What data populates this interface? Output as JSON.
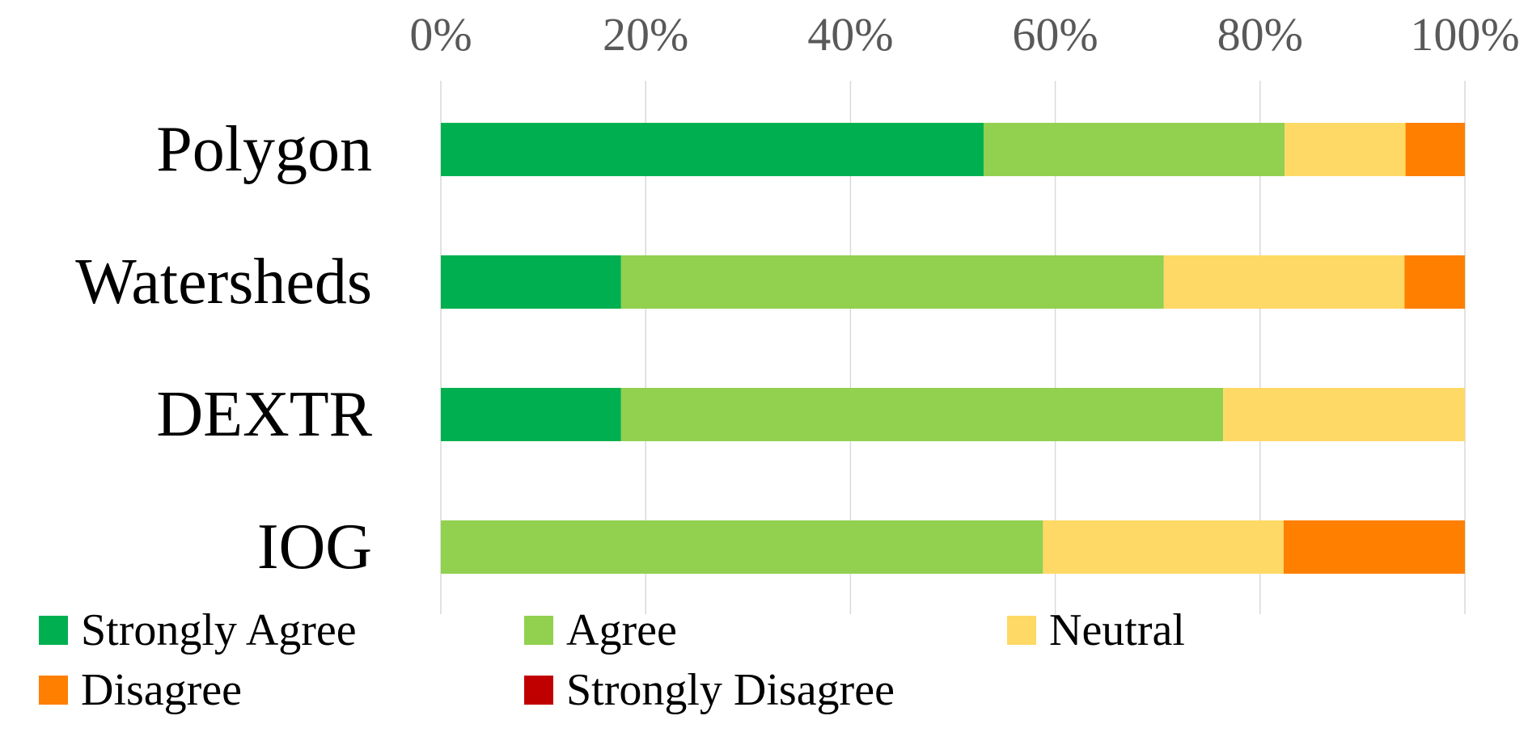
{
  "chart_data": {
    "type": "bar",
    "orientation": "horizontal",
    "stacked": "percent",
    "categories": [
      "Polygon",
      "Watersheds",
      "DEXTR",
      "IOG"
    ],
    "series": [
      {
        "name": "Strongly Agree",
        "color": "#00B050",
        "values": [
          53,
          17.6,
          17.6,
          0
        ]
      },
      {
        "name": "Agree",
        "color": "#92D050",
        "values": [
          29.4,
          53,
          58.8,
          58.8
        ]
      },
      {
        "name": "Neutral",
        "color": "#FFD966",
        "values": [
          11.8,
          23.5,
          23.6,
          23.5
        ]
      },
      {
        "name": "Disagree",
        "color": "#FF7F00",
        "values": [
          5.8,
          5.9,
          0,
          17.7
        ]
      },
      {
        "name": "Strongly Disagree",
        "color": "#C00000",
        "values": [
          0,
          0,
          0,
          0
        ]
      }
    ],
    "x_ticks": [
      "0%",
      "20%",
      "40%",
      "60%",
      "80%",
      "100%"
    ],
    "xlim": [
      0,
      100
    ],
    "x_axis_position": "top",
    "grid": true,
    "legend_position": "bottom-left",
    "title": "",
    "xlabel": "",
    "ylabel": ""
  }
}
